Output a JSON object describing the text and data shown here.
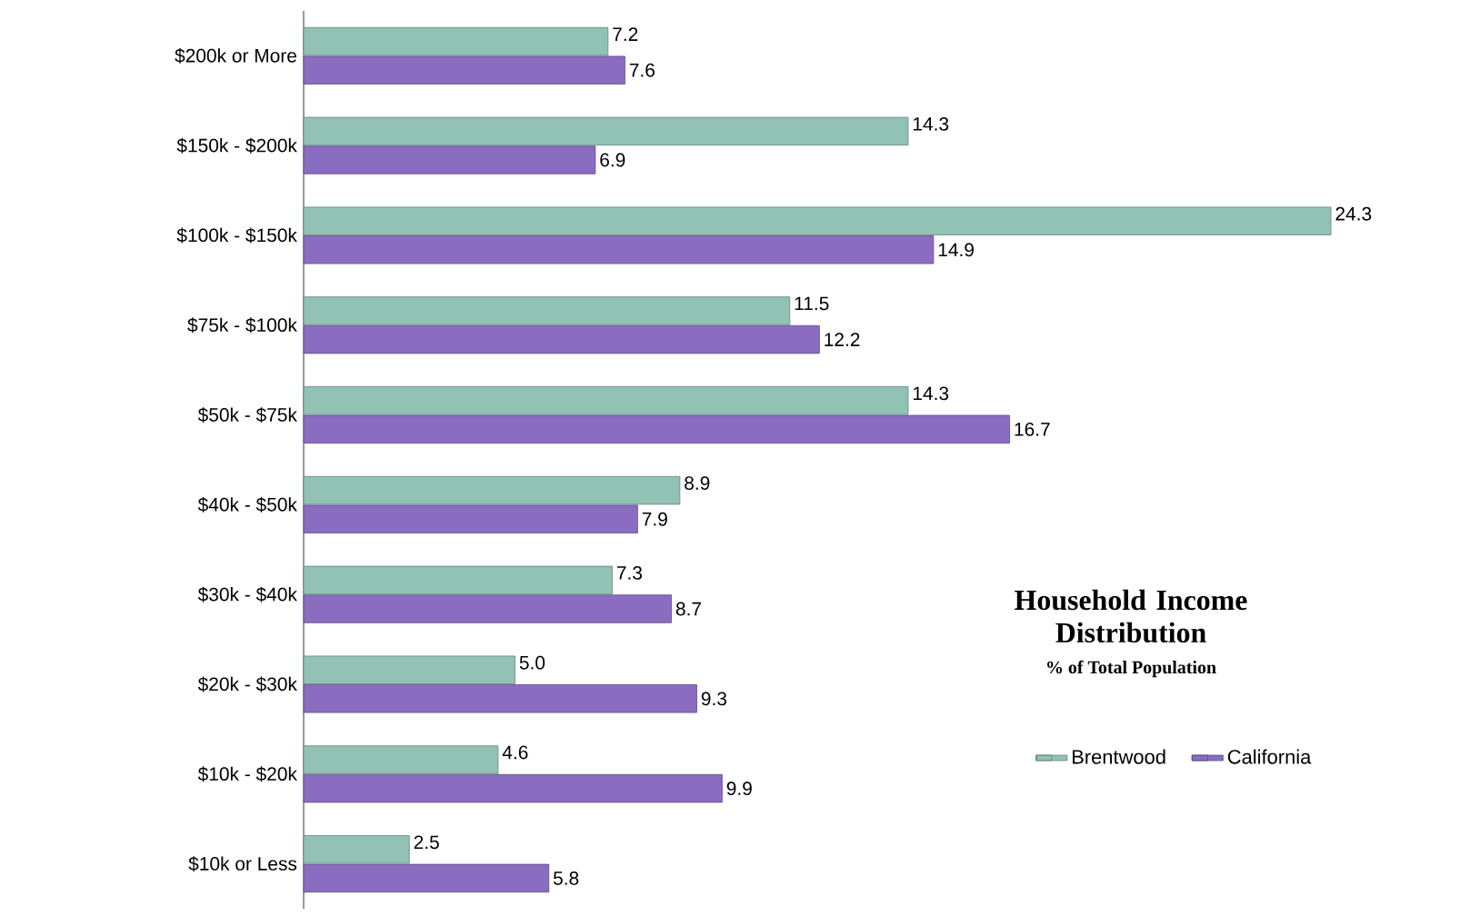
{
  "chart_data": {
    "type": "bar",
    "orientation": "horizontal",
    "title": "Household  Income Distribution",
    "subtitle": "% of Total Population",
    "categories": [
      "$200k or More",
      "$150k - $200k",
      "$100k - $150k",
      "$75k - $100k",
      "$50k - $75k",
      "$40k - $50k",
      "$30k - $40k",
      "$20k - $30k",
      "$10k - $20k",
      "$10k or Less"
    ],
    "series": [
      {
        "name": "Brentwood",
        "color": "#92c1b6",
        "values": [
          7.2,
          14.3,
          24.3,
          11.5,
          14.3,
          8.9,
          7.3,
          5.0,
          4.6,
          2.5
        ],
        "value_labels": [
          "7.2",
          "14.3",
          "24.3",
          "11.5",
          "14.3",
          "8.9",
          "7.3",
          "5.0",
          "4.6",
          "2.5"
        ]
      },
      {
        "name": "California",
        "color": "#8a6cc0",
        "values": [
          7.6,
          6.9,
          14.9,
          12.2,
          16.7,
          7.9,
          8.7,
          9.3,
          9.9,
          5.8
        ],
        "value_labels": [
          "7.6",
          "6.9",
          "14.9",
          "12.2",
          "16.7",
          "7.9",
          "8.7",
          "9.3",
          "9.9",
          "5.8"
        ]
      }
    ],
    "legend": "right"
  }
}
